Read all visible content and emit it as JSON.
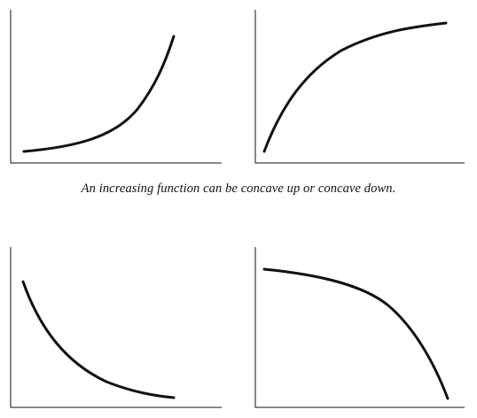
{
  "caption": "An increasing function can be concave up or concave down.",
  "colors": {
    "ink": "#111111",
    "background": "#ffffff"
  },
  "panels": [
    {
      "id": "increasing-concave-up",
      "trend": "increasing",
      "concavity": "concave up"
    },
    {
      "id": "increasing-concave-down",
      "trend": "increasing",
      "concavity": "concave down"
    },
    {
      "id": "decreasing-concave-up",
      "trend": "decreasing",
      "concavity": "concave up"
    },
    {
      "id": "decreasing-concave-down",
      "trend": "decreasing",
      "concavity": "concave down"
    }
  ]
}
